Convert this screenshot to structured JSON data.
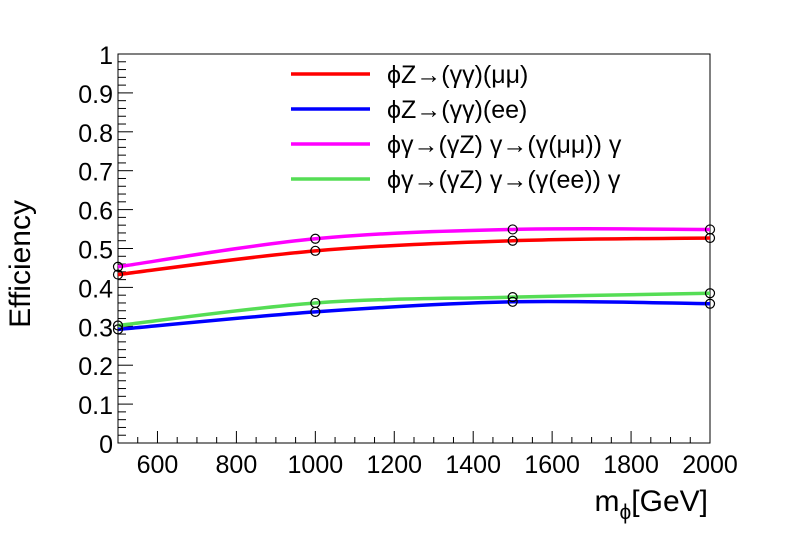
{
  "chart_data": {
    "type": "line",
    "title": "",
    "xlabel_main": "m",
    "xlabel_sub": "ϕ",
    "xlabel_unit": "[GeV]",
    "ylabel": "Efficiency",
    "xlim": [
      500,
      2000
    ],
    "ylim": [
      0,
      1
    ],
    "xticks": [
      600,
      800,
      1000,
      1200,
      1400,
      1600,
      1800,
      2000
    ],
    "xtick_labels": [
      "600",
      "800",
      "1000",
      "1200",
      "1400",
      "1600",
      "1800",
      "2000"
    ],
    "yticks": [
      0,
      0.1,
      0.2,
      0.3,
      0.4,
      0.5,
      0.6,
      0.7,
      0.8,
      0.9,
      1
    ],
    "ytick_labels": [
      "0",
      "0.1",
      "0.2",
      "0.3",
      "0.4",
      "0.5",
      "0.6",
      "0.7",
      "0.8",
      "0.9",
      "1"
    ],
    "x": [
      500,
      1000,
      1500,
      2000
    ],
    "legend_position": "top-right",
    "series": [
      {
        "name": "ϕZ→(γγ)(μμ)",
        "color": "#ff0000",
        "values": [
          0.433,
          0.494,
          0.52,
          0.527
        ]
      },
      {
        "name": "ϕZ→(γγ)(ee)",
        "color": "#0000ff",
        "values": [
          0.292,
          0.337,
          0.363,
          0.358
        ]
      },
      {
        "name": "ϕγ→(γZ) γ→(γ(μμ)) γ",
        "color": "#ff00ff",
        "values": [
          0.453,
          0.525,
          0.549,
          0.549
        ]
      },
      {
        "name": "ϕγ→(γZ) γ→(γ(ee)) γ",
        "color": "#55dd55",
        "values": [
          0.302,
          0.36,
          0.375,
          0.385
        ]
      }
    ]
  }
}
